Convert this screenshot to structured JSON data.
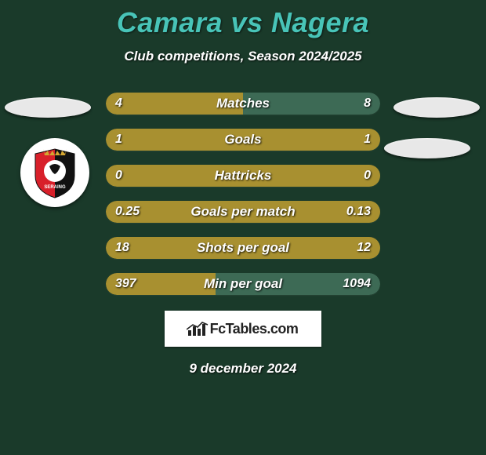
{
  "header": {
    "title": "Camara vs Nagera",
    "subtitle": "Club competitions, Season 2024/2025"
  },
  "colors": {
    "title": "#48c4b8",
    "bar_left": "#a89030",
    "bar_right": "#3d6a55",
    "bg": "#1a3a2a",
    "text": "#ffffff"
  },
  "bars": [
    {
      "label": "Matches",
      "left_value": "4",
      "right_value": "8",
      "left_pct": 50,
      "right_pct": 50
    },
    {
      "label": "Goals",
      "left_value": "1",
      "right_value": "1",
      "left_pct": 100,
      "right_pct": 0
    },
    {
      "label": "Hattricks",
      "left_value": "0",
      "right_value": "0",
      "left_pct": 100,
      "right_pct": 0
    },
    {
      "label": "Goals per match",
      "left_value": "0.25",
      "right_value": "0.13",
      "left_pct": 100,
      "right_pct": 0
    },
    {
      "label": "Shots per goal",
      "left_value": "18",
      "right_value": "12",
      "left_pct": 100,
      "right_pct": 0
    },
    {
      "label": "Min per goal",
      "left_value": "397",
      "right_value": "1094",
      "left_pct": 40,
      "right_pct": 60
    }
  ],
  "side_ellipses": {
    "left_1": true,
    "right_1": true,
    "right_2": true
  },
  "club_badge": {
    "name": "SERAING",
    "primary_color": "#d8202a",
    "secondary_color": "#111111",
    "crown_color": "#d4a630"
  },
  "branding": {
    "label": "FcTables.com",
    "icon": "chart-icon"
  },
  "footer": {
    "date": "9 december 2024"
  }
}
